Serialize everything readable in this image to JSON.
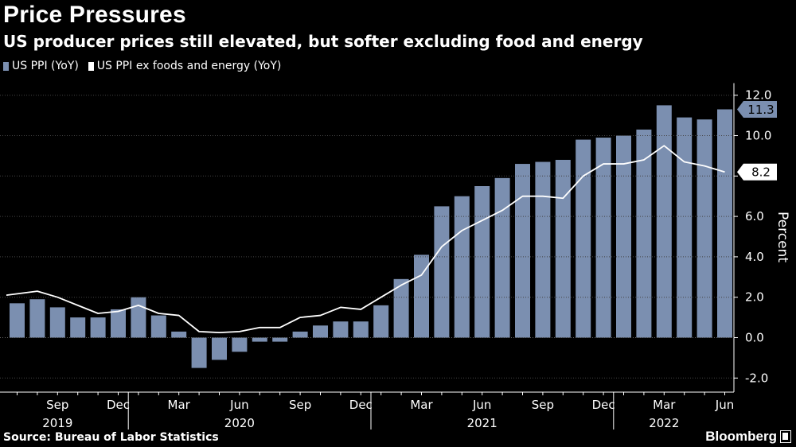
{
  "header": {
    "title": "Price Pressures",
    "subtitle": "US producer prices still elevated, but softer excluding food and energy"
  },
  "legend": {
    "items": [
      {
        "label": "US PPI (YoY)",
        "color": "#7b8fb0"
      },
      {
        "label": "US PPI ex foods and energy (YoY)",
        "color": "#ffffff"
      }
    ]
  },
  "footer": {
    "source": "Source: Bureau of Labor Statistics",
    "brand": "Bloomberg"
  },
  "chart_data": {
    "type": "bar",
    "title": "Price Pressures",
    "ylabel": "Percent",
    "ylim": [
      -2.0,
      12.0
    ],
    "yticks": [
      "12.0",
      "10.0",
      "8.0",
      "6.0",
      "4.0",
      "2.0",
      "0.0",
      "-2.0"
    ],
    "ytick_values": [
      12,
      10,
      8,
      6,
      4,
      2,
      0,
      -2
    ],
    "categories": [
      "Jul 2019",
      "Aug 2019",
      "Sep 2019",
      "Oct 2019",
      "Nov 2019",
      "Dec 2019",
      "Jan 2020",
      "Feb 2020",
      "Mar 2020",
      "Apr 2020",
      "May 2020",
      "Jun 2020",
      "Jul 2020",
      "Aug 2020",
      "Sep 2020",
      "Oct 2020",
      "Nov 2020",
      "Dec 2020",
      "Jan 2021",
      "Feb 2021",
      "Mar 2021",
      "Apr 2021",
      "May 2021",
      "Jun 2021",
      "Jul 2021",
      "Aug 2021",
      "Sep 2021",
      "Oct 2021",
      "Nov 2021",
      "Dec 2021",
      "Jan 2022",
      "Feb 2022",
      "Mar 2022",
      "Apr 2022",
      "May 2022",
      "Jun 2022"
    ],
    "x_tick_labels": [
      {
        "label": "Sep",
        "index": 2
      },
      {
        "label": "Dec",
        "index": 5
      },
      {
        "label": "Mar",
        "index": 8
      },
      {
        "label": "Jun",
        "index": 11
      },
      {
        "label": "Sep",
        "index": 14
      },
      {
        "label": "Dec",
        "index": 17
      },
      {
        "label": "Mar",
        "index": 20
      },
      {
        "label": "Jun",
        "index": 23
      },
      {
        "label": "Sep",
        "index": 26
      },
      {
        "label": "Dec",
        "index": 29
      },
      {
        "label": "Mar",
        "index": 32
      },
      {
        "label": "Jun",
        "index": 35
      }
    ],
    "x_year_labels": [
      {
        "label": "2019",
        "index": 2
      },
      {
        "label": "2020",
        "index": 11
      },
      {
        "label": "2021",
        "index": 23
      },
      {
        "label": "2022",
        "index": 32
      }
    ],
    "year_dividers": [
      5.5,
      17.5,
      29.5
    ],
    "series": [
      {
        "name": "US PPI (YoY)",
        "type": "bar",
        "color": "#7b8fb0",
        "values": [
          1.7,
          1.9,
          1.5,
          1.0,
          1.0,
          1.4,
          2.0,
          1.1,
          0.3,
          -1.5,
          -1.1,
          -0.7,
          -0.2,
          -0.2,
          0.3,
          0.6,
          0.8,
          0.8,
          1.6,
          2.9,
          4.1,
          6.5,
          7.0,
          7.5,
          7.9,
          8.6,
          8.7,
          8.8,
          9.8,
          9.9,
          10.0,
          10.3,
          11.5,
          10.9,
          10.8,
          11.3
        ],
        "end_label": "11.3"
      },
      {
        "name": "US PPI ex foods and energy (YoY)",
        "type": "line",
        "color": "#ffffff",
        "values": [
          2.1,
          2.3,
          2.0,
          1.6,
          1.2,
          1.3,
          1.6,
          1.2,
          1.1,
          0.3,
          0.25,
          0.3,
          0.5,
          0.5,
          1.0,
          1.1,
          1.5,
          1.4,
          2.0,
          2.6,
          3.1,
          4.5,
          5.3,
          5.8,
          6.3,
          7.0,
          7.0,
          6.9,
          8.0,
          8.6,
          8.6,
          8.8,
          9.5,
          8.7,
          8.5,
          8.2
        ],
        "end_label": "8.2"
      }
    ]
  }
}
